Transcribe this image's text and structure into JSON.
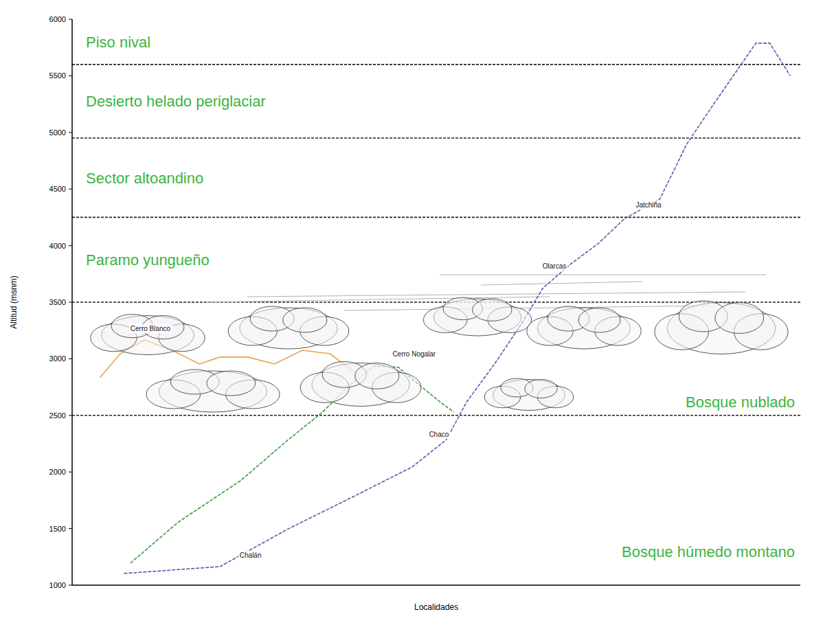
{
  "chart_data": {
    "type": "line",
    "x_label": "Localidades",
    "y_label": "Altitud (msnm)",
    "xlim": [
      0,
      100
    ],
    "ylim": [
      1000,
      6000
    ],
    "yticks": [
      1000,
      1500,
      2000,
      2500,
      3000,
      3500,
      4000,
      4500,
      5000,
      5500,
      6000
    ],
    "tick_labels": "y",
    "grid": false,
    "zones": [
      {
        "name": "Bosque húmedo montano",
        "from": 1000,
        "to": 2500
      },
      {
        "name": "Bosque nublado",
        "from": 2500,
        "to": 3500
      },
      {
        "name": "Paramo yungueño",
        "from": 3500,
        "to": 4250
      },
      {
        "name": "Sector altoandino",
        "from": 4250,
        "to": 4950
      },
      {
        "name": "Desierto helado periglaciar",
        "from": 4950,
        "to": 5600
      },
      {
        "name": "Piso nival",
        "from": 5600,
        "to": 6000
      }
    ],
    "series": [
      {
        "color": "#5a5aa8",
        "line_style": "dashed",
        "x": [
          7.1,
          20.3,
          29.7,
          39.2,
          46.7,
          51.4,
          54.2,
          58,
          61.8,
          64.6,
          68.4,
          72.2,
          75.9,
          80.7,
          84.4,
          88.2,
          92,
          93.9,
          95.8,
          98.6
        ],
        "values": [
          1103,
          1164,
          1498,
          1801,
          2044,
          2286,
          2620,
          2954,
          3318,
          3621,
          3834,
          4016,
          4240,
          4410,
          4896,
          5260,
          5612,
          5788,
          5788,
          5502
        ]
      },
      {
        "color": "#3a9a3a",
        "line_style": "dashed",
        "x": [
          8,
          14.6,
          23.1,
          29.7,
          34.4,
          38.2,
          41.5,
          44.8,
          47.6,
          50.5,
          52.4
        ],
        "values": [
          1194,
          1558,
          1922,
          2286,
          2529,
          2772,
          2936,
          2924,
          2772,
          2620,
          2529
        ]
      },
      {
        "color": "#e8a050",
        "line_style": "solid",
        "x": [
          3.8,
          6.6,
          9.9,
          13.7,
          17.5,
          20.3,
          24.1,
          27.8,
          31.6,
          35.4,
          39.2
        ],
        "values": [
          2833,
          3045,
          3166,
          3075,
          2954,
          3015,
          3015,
          2954,
          3075,
          3045,
          2863
        ]
      }
    ],
    "annotations": [
      {
        "text": "Cerro Blanco",
        "x": 8,
        "y": 3270
      },
      {
        "text": "Cerro Nogalar",
        "x": 44,
        "y": 3045
      },
      {
        "text": "Chalán",
        "x": 23,
        "y": 1267
      },
      {
        "text": "Chaco",
        "x": 49,
        "y": 2335
      },
      {
        "text": "Olarcas",
        "x": 64.6,
        "y": 3820
      },
      {
        "text": "Jatchiña",
        "x": 77.4,
        "y": 4360
      }
    ]
  }
}
